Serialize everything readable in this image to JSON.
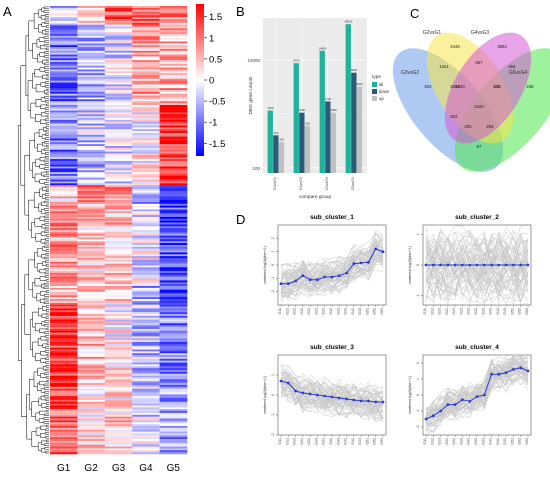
{
  "panels": {
    "a": "A",
    "b": "B",
    "c": "C",
    "d": "D"
  },
  "chart_data": [
    {
      "panel": "A",
      "type": "heatmap",
      "columns": [
        "G1",
        "G2",
        "G3",
        "G4",
        "G5"
      ],
      "colorbar": {
        "ticks": [
          "1.5",
          "1",
          "0.5",
          "0",
          "-0.5",
          "-1",
          "-1.5"
        ],
        "range": [
          -1.8,
          1.8
        ],
        "colors": [
          "#0000ff",
          "#ffffff",
          "#ff0000"
        ]
      },
      "dendrogram": true
    },
    {
      "panel": "B",
      "type": "bar",
      "xlabel": "compare group",
      "ylabel": "DEG gene counts",
      "yscale": "log",
      "ytick_labels": [
        "100",
        "10000"
      ],
      "categories": [
        "G2vsG1",
        "G3vsG2",
        "G4vsG3",
        "G5vsG4"
      ],
      "legend": {
        "title": "type",
        "entries": [
          "all",
          "down",
          "up"
        ],
        "placement": "right"
      },
      "series": [
        {
          "name": "all",
          "color": "#1fb39c",
          "values": [
            1150,
            8700,
            14800,
            46000
          ],
          "labels": [
            "1150",
            "8700",
            "14800",
            "46000"
          ]
        },
        {
          "name": "down",
          "color": "#2c5a78",
          "values": [
            400,
            1050,
            1700,
            5800
          ],
          "labels": [
            "400",
            "1050",
            "1700",
            "5800"
          ]
        },
        {
          "name": "up",
          "color": "#c0c0c0",
          "values": [
            300,
            600,
            1050,
            3200
          ],
          "labels": [
            "300",
            "600",
            "1050",
            "3200"
          ]
        }
      ]
    },
    {
      "panel": "C",
      "type": "venn",
      "sets": [
        {
          "name": "G3vsG2",
          "color": "#6e9ee8"
        },
        {
          "name": "G2vsG1",
          "color": "#f5e44c"
        },
        {
          "name": "G4vsG3",
          "color": "#d45ad3"
        },
        {
          "name": "G5vsG4",
          "color": "#4ee84e"
        }
      ],
      "counts": {
        "A": "922",
        "B": "4446",
        "C": "3984",
        "D": "245",
        "AB": "1341",
        "BC": "867",
        "CD": "464",
        "AC": "3084",
        "BD": "335",
        "ABC": "2040",
        "BCD": "231",
        "ABCD": "2160",
        "AD": "592",
        "ABD": "205",
        "ACD": "292",
        "center_low": "67"
      }
    },
    {
      "panel": "D",
      "type": "line",
      "ylabel": "centered log2(fpkm+1)",
      "x": [
        "G11",
        "G12",
        "G13",
        "G21",
        "G22",
        "G23",
        "G31",
        "G32",
        "G33",
        "G41",
        "G42",
        "G43",
        "G51",
        "G52",
        "G53"
      ],
      "subplots": [
        {
          "title": "sub_cluster_1",
          "ylim": [
            -3,
            3
          ],
          "yticks": [
            "-2",
            "-1",
            "0",
            "1",
            "2"
          ],
          "mean": [
            -1.4,
            -1.4,
            -1.2,
            -0.8,
            -1.1,
            -1.1,
            -0.9,
            -0.9,
            -0.8,
            -0.6,
            0.1,
            0.15,
            0.2,
            1.2,
            1.0
          ]
        },
        {
          "title": "sub_cluster_2",
          "ylim": [
            -1.3,
            1.3
          ],
          "yticks": [
            "-1",
            "0",
            "1"
          ],
          "mean": [
            0,
            0,
            0,
            0,
            0,
            0,
            0,
            0,
            0,
            0,
            0,
            0,
            0,
            0,
            0
          ]
        },
        {
          "title": "sub_cluster_3",
          "ylim": [
            -2,
            2
          ],
          "yticks": [
            "-2",
            "-1",
            "0",
            "1"
          ],
          "mean": [
            0.7,
            0.6,
            0.2,
            0.1,
            0.05,
            0,
            -0.05,
            -0.1,
            -0.15,
            -0.2,
            -0.25,
            -0.3,
            -0.3,
            -0.35,
            -0.35
          ]
        },
        {
          "title": "sub_cluster_4",
          "ylim": [
            -2.5,
            2.5
          ],
          "yticks": [
            "-2",
            "-1",
            "0",
            "1",
            "2"
          ],
          "mean": [
            -1.5,
            -1.3,
            -1.0,
            -0.6,
            -0.6,
            -0.3,
            -0.4,
            -0.1,
            0.0,
            1.3,
            1.3,
            1.4,
            1.6,
            1.7,
            1.5
          ]
        }
      ]
    }
  ]
}
